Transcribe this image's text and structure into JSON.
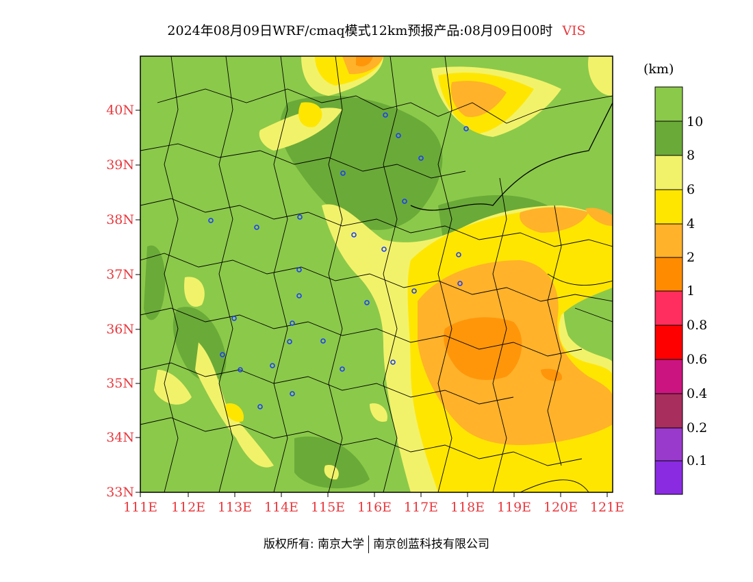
{
  "title": {
    "main": "2024年08月09日WRF/cmaq模式12km预报产品:08月09日00时",
    "variable": "VIS"
  },
  "axes": {
    "y_labels": [
      "40N",
      "39N",
      "38N",
      "37N",
      "36N",
      "35N",
      "34N",
      "33N"
    ],
    "x_labels": [
      "111E",
      "112E",
      "113E",
      "114E",
      "115E",
      "116E",
      "117E",
      "118E",
      "119E",
      "120E",
      "121E"
    ]
  },
  "colorbar": {
    "unit": "(km)",
    "labels": [
      "10",
      "8",
      "6",
      "4",
      "2",
      "1",
      "0.8",
      "0.6",
      "0.4",
      "0.2",
      "0.1"
    ],
    "colors": [
      "#8bc94a",
      "#6aaa38",
      "#f2f26a",
      "#ffe600",
      "#ffb22a",
      "#ff8c00",
      "#ff2e5e",
      "#ff0000",
      "#cc1480",
      "#a82e5e",
      "#9a3acc",
      "#8a2be2"
    ]
  },
  "stations_visible": true,
  "footer": {
    "copyright": "版权所有: 南京大学",
    "company": "南京创蓝科技有限公司"
  }
}
